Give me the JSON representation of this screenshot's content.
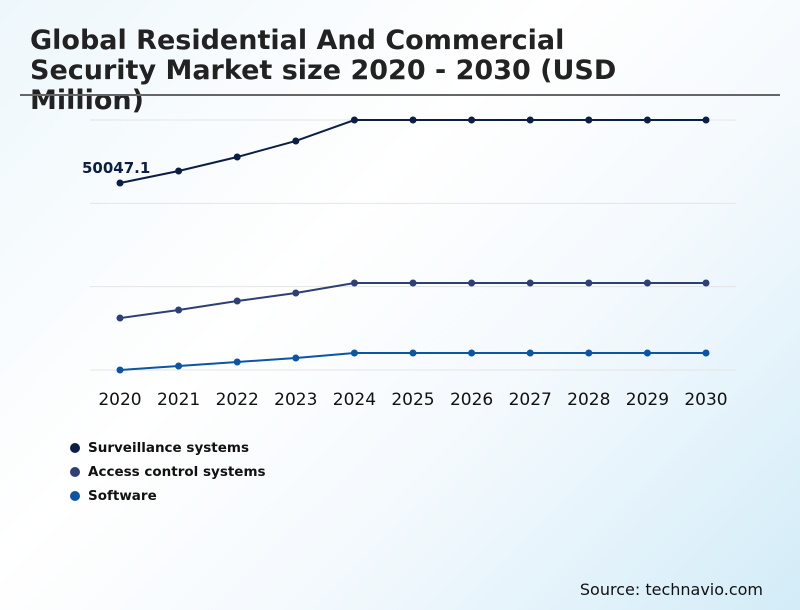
{
  "chart_data": {
    "type": "line",
    "title": "Global Residential And Commercial Security Market size 2020 - 2030 (USD Million)",
    "xlabel": "",
    "ylabel": "",
    "categories": [
      "2020",
      "2021",
      "2022",
      "2023",
      "2024",
      "2025",
      "2026",
      "2027",
      "2028",
      "2029",
      "2030"
    ],
    "ylim": [
      0,
      66900
    ],
    "grid": true,
    "legend_position": "bottom-left",
    "series": [
      {
        "name": "Surveillance systems",
        "color": "#0b1f45",
        "values": [
          50047.1,
          53260,
          57000,
          61290,
          66900,
          66900,
          66900,
          66900,
          66900,
          66900,
          66900
        ]
      },
      {
        "name": "Access control systems",
        "color": "#2e3f74",
        "values": [
          13900,
          16060,
          18460,
          20600,
          23280,
          23280,
          23280,
          23280,
          23280,
          23280,
          23280
        ]
      },
      {
        "name": "Software",
        "color": "#0a56a4",
        "values": [
          0,
          1070,
          2140,
          3210,
          4550,
          4550,
          4550,
          4550,
          4550,
          4550,
          4550
        ]
      }
    ],
    "annotations": [
      {
        "text": "50047.1",
        "series": 0,
        "x": "2020"
      }
    ]
  },
  "source": "Source: technavio.com"
}
